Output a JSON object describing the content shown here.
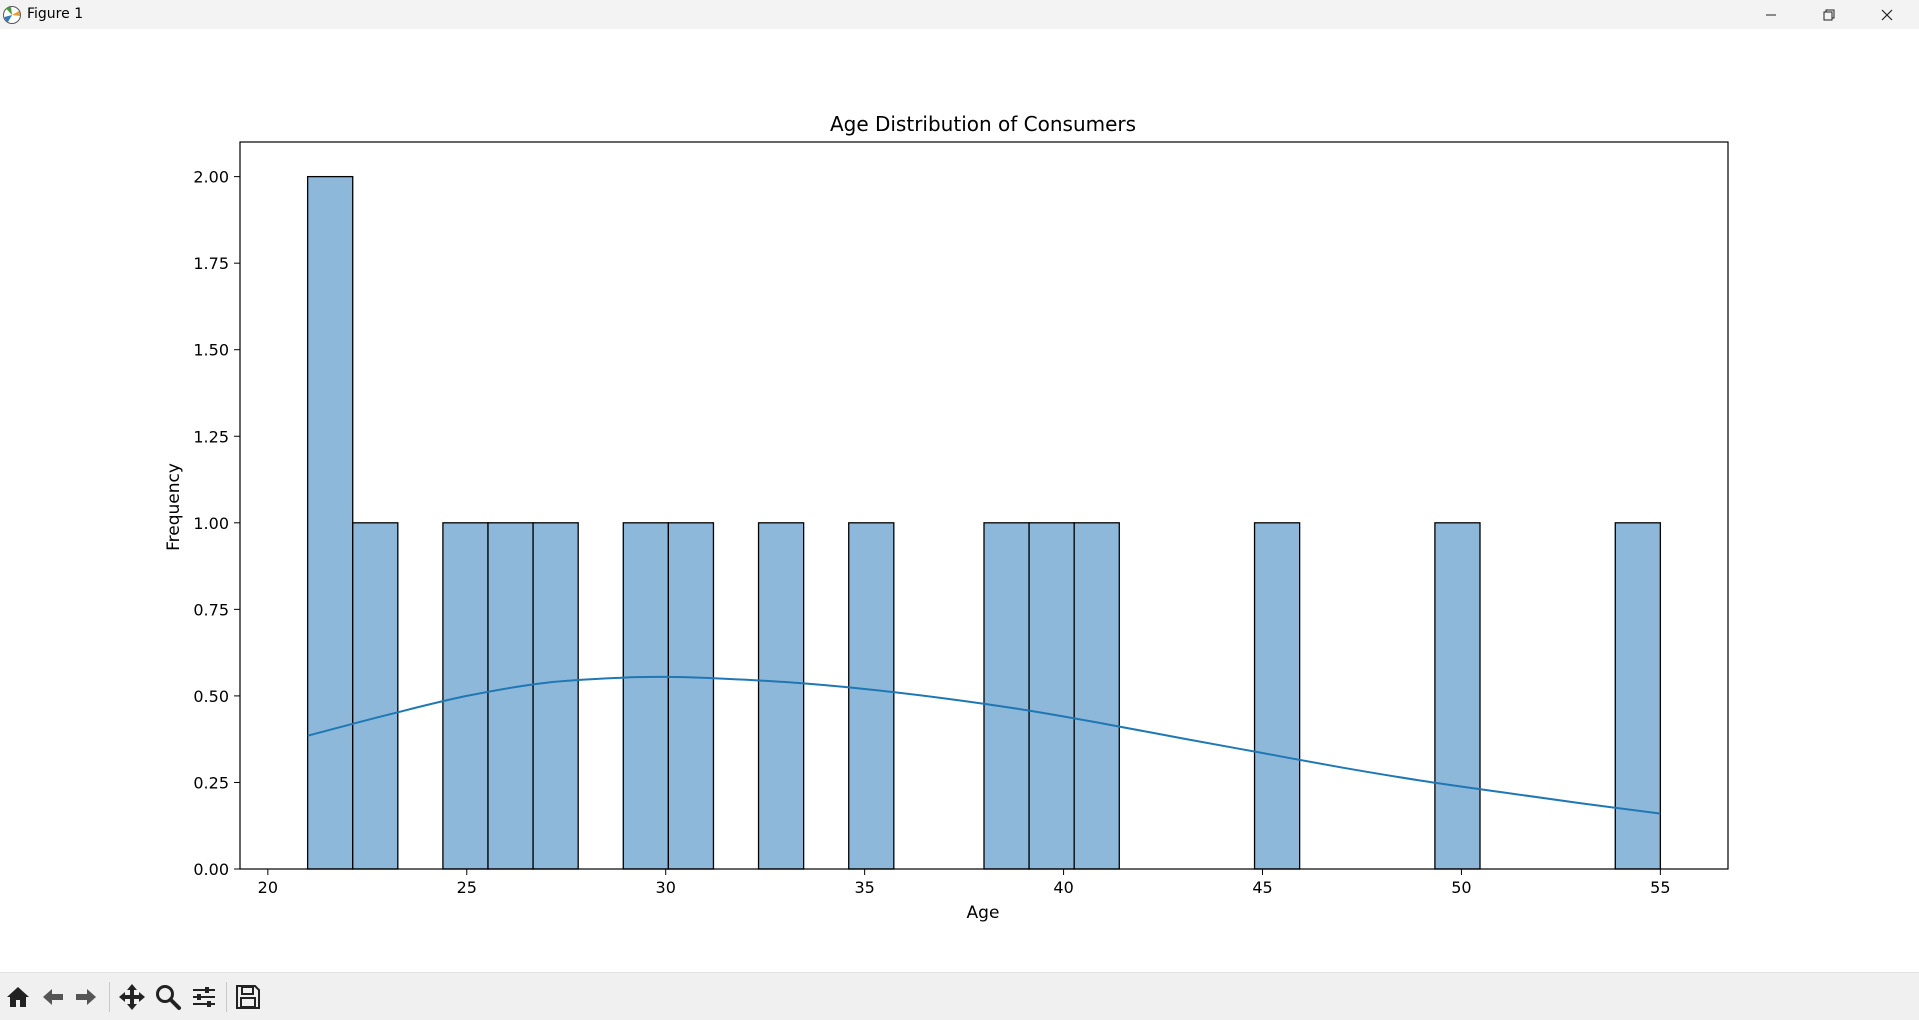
{
  "window": {
    "title": "Figure 1",
    "controls": [
      "minimize",
      "restore",
      "close"
    ]
  },
  "toolbar": {
    "buttons": [
      "home-icon",
      "back-arrow-icon",
      "forward-arrow-icon",
      "pan-icon",
      "zoom-icon",
      "configure-subplots-icon",
      "save-icon"
    ]
  },
  "chart_data": {
    "type": "bar",
    "subtype": "histogram-with-kde",
    "title": "Age Distribution of Consumers",
    "xlabel": "Age",
    "ylabel": "Frequency",
    "xlim": [
      19.3,
      56.7
    ],
    "ylim": [
      0,
      2.1
    ],
    "xticks": [
      20,
      25,
      30,
      35,
      40,
      45,
      50,
      55
    ],
    "yticks": [
      0.0,
      0.25,
      0.5,
      0.75,
      1.0,
      1.25,
      1.5,
      1.75,
      2.0
    ],
    "ytick_labels": [
      "0.00",
      "0.25",
      "0.50",
      "0.75",
      "1.00",
      "1.25",
      "1.50",
      "1.75",
      "2.00"
    ],
    "bins": {
      "start": 21,
      "end": 55,
      "count": 30,
      "counts": [
        2,
        1,
        0,
        1,
        1,
        1,
        0,
        1,
        1,
        0,
        1,
        0,
        1,
        0,
        0,
        1,
        1,
        1,
        0,
        0,
        0,
        1,
        0,
        0,
        0,
        1,
        0,
        0,
        0,
        1
      ]
    },
    "kde": {
      "x": [
        21,
        23,
        25,
        27,
        29,
        30,
        31,
        33,
        35,
        37,
        39,
        41,
        43,
        45,
        47,
        49,
        51,
        53,
        55
      ],
      "y": [
        0.385,
        0.445,
        0.5,
        0.538,
        0.553,
        0.555,
        0.552,
        0.54,
        0.52,
        0.493,
        0.46,
        0.42,
        0.377,
        0.335,
        0.293,
        0.255,
        0.222,
        0.19,
        0.16
      ]
    },
    "colors": {
      "bar_fill": "#8eb8da",
      "bar_edge": "#000000",
      "kde_line": "#1f77b4"
    },
    "grid": false,
    "legend": "none"
  }
}
